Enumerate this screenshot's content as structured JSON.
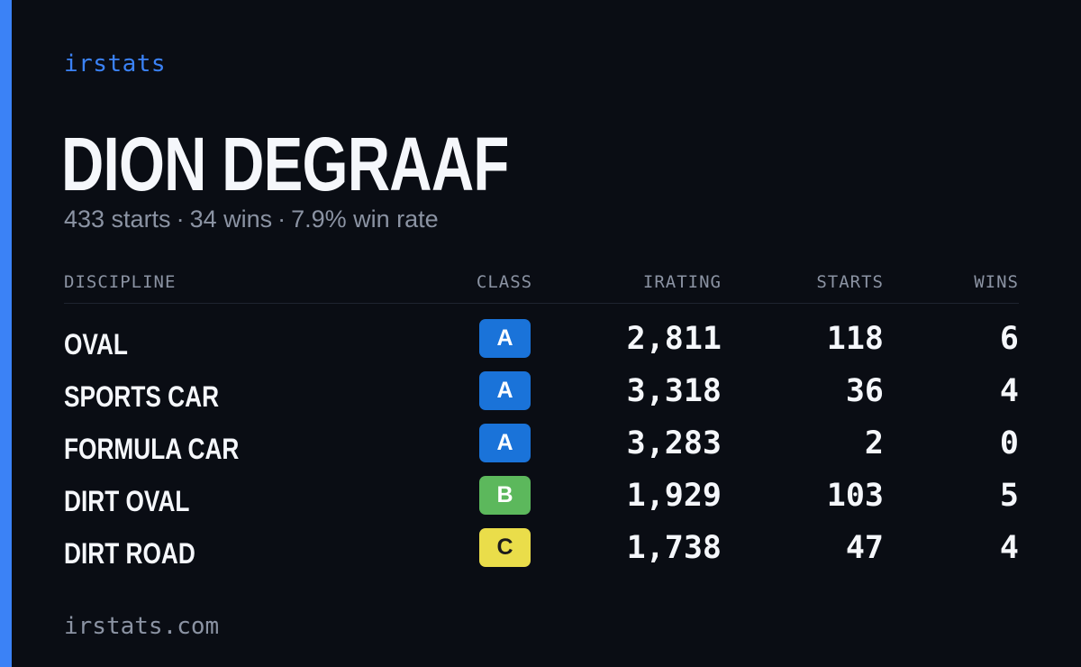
{
  "brand": "irstats",
  "driver": {
    "name": "DION DEGRAAF",
    "starts_text": "433 starts",
    "wins_text": "34 wins",
    "win_rate_text": "7.9% win rate",
    "separator": "·"
  },
  "table": {
    "headers": {
      "discipline": "DISCIPLINE",
      "class": "CLASS",
      "irating": "IRATING",
      "starts": "STARTS",
      "wins": "WINS"
    },
    "rows": [
      {
        "discipline": "OVAL",
        "class": "A",
        "irating": "2,811",
        "starts": "118",
        "wins": "6"
      },
      {
        "discipline": "SPORTS CAR",
        "class": "A",
        "irating": "3,318",
        "starts": "36",
        "wins": "4"
      },
      {
        "discipline": "FORMULA CAR",
        "class": "A",
        "irating": "3,283",
        "starts": "2",
        "wins": "0"
      },
      {
        "discipline": "DIRT OVAL",
        "class": "B",
        "irating": "1,929",
        "starts": "103",
        "wins": "5"
      },
      {
        "discipline": "DIRT ROAD",
        "class": "C",
        "irating": "1,738",
        "starts": "47",
        "wins": "4"
      }
    ]
  },
  "class_colors": {
    "A": "#1a73d9",
    "B": "#5cb85c",
    "C": "#eadd4a"
  },
  "colors": {
    "accent": "#3b82f6",
    "background": "#0a0d14"
  },
  "footer": "irstats.com"
}
